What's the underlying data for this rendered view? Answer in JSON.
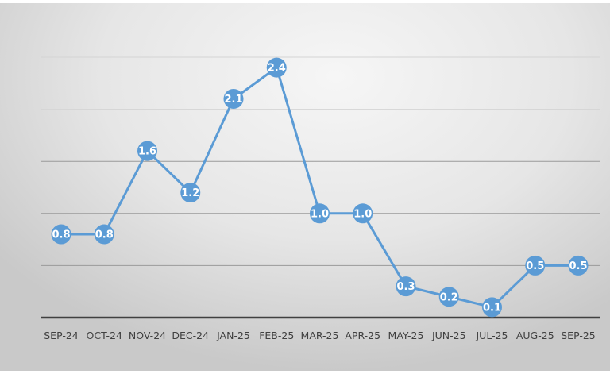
{
  "chart_data": {
    "type": "line",
    "categories": [
      "SEP-24",
      "OCT-24",
      "NOV-24",
      "DEC-24",
      "JAN-25",
      "FEB-25",
      "MAR-25",
      "APR-25",
      "MAY-25",
      "JUN-25",
      "JUL-25",
      "AUG-25",
      "SEP-25"
    ],
    "values": [
      0.8,
      0.8,
      1.6,
      1.2,
      2.1,
      2.4,
      1.0,
      1.0,
      0.3,
      0.2,
      0.1,
      0.5,
      0.5
    ],
    "data_labels": [
      "0.8",
      "0.8",
      "1.6",
      "1.2",
      "2.1",
      "2.4",
      "1.0",
      "1.0",
      "0.3",
      "0.2",
      "0.1",
      "0.5",
      "0.5"
    ],
    "title": "",
    "xlabel": "",
    "ylabel": "",
    "ylim": [
      0,
      2.5
    ],
    "y_gridlines": [
      0.5,
      1.0,
      1.5,
      2.0,
      2.5
    ],
    "grid": true,
    "legend": "none",
    "line_color": "#5b9bd5",
    "axis_color": "#404040"
  }
}
